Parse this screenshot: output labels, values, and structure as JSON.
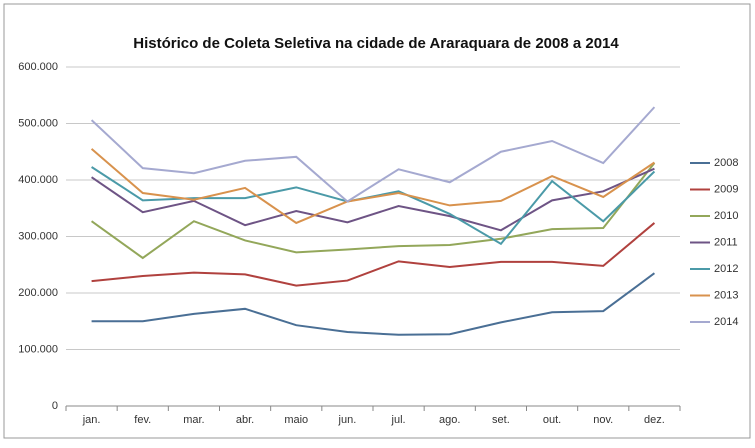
{
  "chart_data": {
    "type": "line",
    "title": "Histórico de Coleta Seletiva na cidade de Araraquara de 2008 a 2014",
    "categories": [
      "jan.",
      "fev.",
      "mar.",
      "abr.",
      "maio",
      "jun.",
      "jul.",
      "ago.",
      "set.",
      "out.",
      "nov.",
      "dez."
    ],
    "series": [
      {
        "name": "2008",
        "color": "#4a6f95",
        "values": [
          150000,
          150000,
          163000,
          172000,
          143000,
          131000,
          126000,
          127000,
          148000,
          166000,
          168000,
          235000
        ]
      },
      {
        "name": "2009",
        "color": "#b0413e",
        "values": [
          221000,
          230000,
          236000,
          233000,
          213000,
          222000,
          256000,
          246000,
          255000,
          255000,
          248000,
          324000
        ]
      },
      {
        "name": "2010",
        "color": "#93a75a",
        "values": [
          327000,
          262000,
          327000,
          293000,
          272000,
          277000,
          283000,
          285000,
          296000,
          313000,
          315000,
          430000
        ]
      },
      {
        "name": "2011",
        "color": "#6e5485",
        "values": [
          405000,
          343000,
          363000,
          320000,
          345000,
          325000,
          354000,
          336000,
          311000,
          364000,
          380000,
          420000
        ]
      },
      {
        "name": "2012",
        "color": "#4b9aa8",
        "values": [
          423000,
          364000,
          368000,
          368000,
          387000,
          362000,
          380000,
          340000,
          287000,
          398000,
          327000,
          415000
        ]
      },
      {
        "name": "2013",
        "color": "#d8924d",
        "values": [
          455000,
          377000,
          365000,
          386000,
          324000,
          362000,
          377000,
          355000,
          363000,
          407000,
          370000,
          431000
        ]
      },
      {
        "name": "2014",
        "color": "#a5a9d0",
        "values": [
          506000,
          421000,
          412000,
          434000,
          441000,
          362000,
          419000,
          396000,
          450000,
          469000,
          430000,
          529000
        ]
      }
    ],
    "ylim": [
      0,
      600000
    ],
    "yticks": [
      0,
      {
        "value": 100000,
        "label": "100.000"
      },
      {
        "value": 200000,
        "label": "200.000"
      },
      {
        "value": 300000,
        "label": "300.000"
      },
      {
        "value": 400000,
        "label": "400.000"
      },
      {
        "value": 500000,
        "label": "500.000"
      },
      {
        "value": 600000,
        "label": "600.000"
      }
    ],
    "grid": true,
    "legend": "right"
  }
}
